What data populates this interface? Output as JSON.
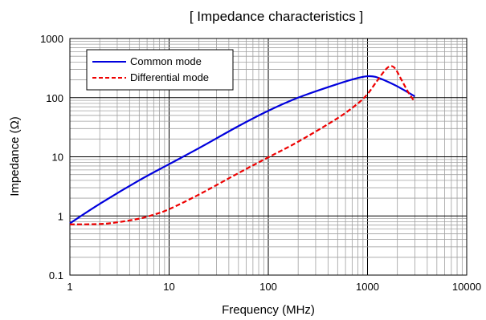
{
  "chart_data": {
    "type": "line",
    "title": "[ Impedance characteristics ]",
    "xlabel": "Frequency (MHz)",
    "ylabel": "Impedance (Ω)",
    "x_scale": "log",
    "y_scale": "log",
    "xlim": [
      1,
      10000
    ],
    "ylim": [
      0.1,
      1000
    ],
    "grid": true,
    "legend_position": "top-left",
    "x_ticks": [
      1,
      10,
      100,
      1000,
      10000
    ],
    "x_tick_labels": [
      "1",
      "10",
      "100",
      "1000",
      "10000"
    ],
    "y_ticks": [
      0.1,
      1,
      10,
      100,
      1000
    ],
    "y_tick_labels": [
      "0.1",
      "1",
      "10",
      "100",
      "1000"
    ],
    "series": [
      {
        "name": "Common mode",
        "color": "#0000dd",
        "line_style": "solid",
        "x": [
          1,
          2,
          5,
          10,
          20,
          50,
          100,
          200,
          500,
          800,
          1000,
          1200,
          1500,
          2000,
          3000
        ],
        "y": [
          0.75,
          1.6,
          4.0,
          7.5,
          14,
          33,
          60,
          100,
          170,
          215,
          230,
          225,
          195,
          155,
          105
        ]
      },
      {
        "name": "Differential mode",
        "color": "#ee0000",
        "line_style": "dashed",
        "x": [
          1,
          2,
          3,
          5,
          7,
          10,
          20,
          50,
          100,
          200,
          500,
          800,
          1000,
          1200,
          1500,
          1700,
          1900,
          2200,
          2600,
          3000
        ],
        "y": [
          0.72,
          0.73,
          0.78,
          0.9,
          1.05,
          1.3,
          2.3,
          5.3,
          9.8,
          18,
          45,
          80,
          115,
          175,
          290,
          340,
          310,
          200,
          120,
          85
        ]
      }
    ]
  }
}
